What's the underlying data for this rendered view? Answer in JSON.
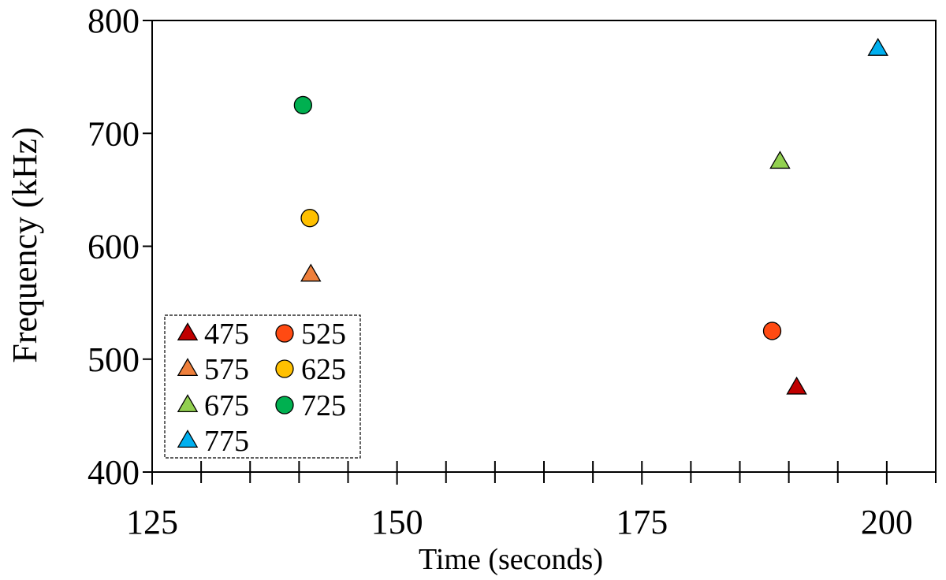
{
  "chart_data": {
    "type": "scatter",
    "title": "",
    "xlabel": "Time (seconds)",
    "ylabel": "Frequency (kHz)",
    "xlim": [
      125,
      205
    ],
    "ylim": [
      400,
      800
    ],
    "x_ticks_major": [
      125,
      150,
      175,
      200
    ],
    "x_ticks_minor_step": 5,
    "y_ticks": [
      400,
      500,
      600,
      700,
      800
    ],
    "grid": false,
    "legend_position": "bottom-left",
    "series": [
      {
        "name": "475",
        "marker": "triangle",
        "color": "#c00000",
        "points": [
          {
            "x": 190.8,
            "y": 475
          }
        ]
      },
      {
        "name": "525",
        "marker": "circle",
        "color": "#ff4a12",
        "points": [
          {
            "x": 188.3,
            "y": 525
          }
        ]
      },
      {
        "name": "575",
        "marker": "triangle",
        "color": "#ee7f3b",
        "points": [
          {
            "x": 141.2,
            "y": 575
          }
        ]
      },
      {
        "name": "625",
        "marker": "circle",
        "color": "#ffc000",
        "points": [
          {
            "x": 141.1,
            "y": 625
          }
        ]
      },
      {
        "name": "675",
        "marker": "triangle",
        "color": "#92d050",
        "points": [
          {
            "x": 189.1,
            "y": 675
          }
        ]
      },
      {
        "name": "725",
        "marker": "circle",
        "color": "#00b050",
        "points": [
          {
            "x": 140.4,
            "y": 725
          }
        ]
      },
      {
        "name": "775",
        "marker": "triangle",
        "color": "#00b0f0",
        "points": [
          {
            "x": 199.1,
            "y": 775
          }
        ]
      }
    ]
  }
}
